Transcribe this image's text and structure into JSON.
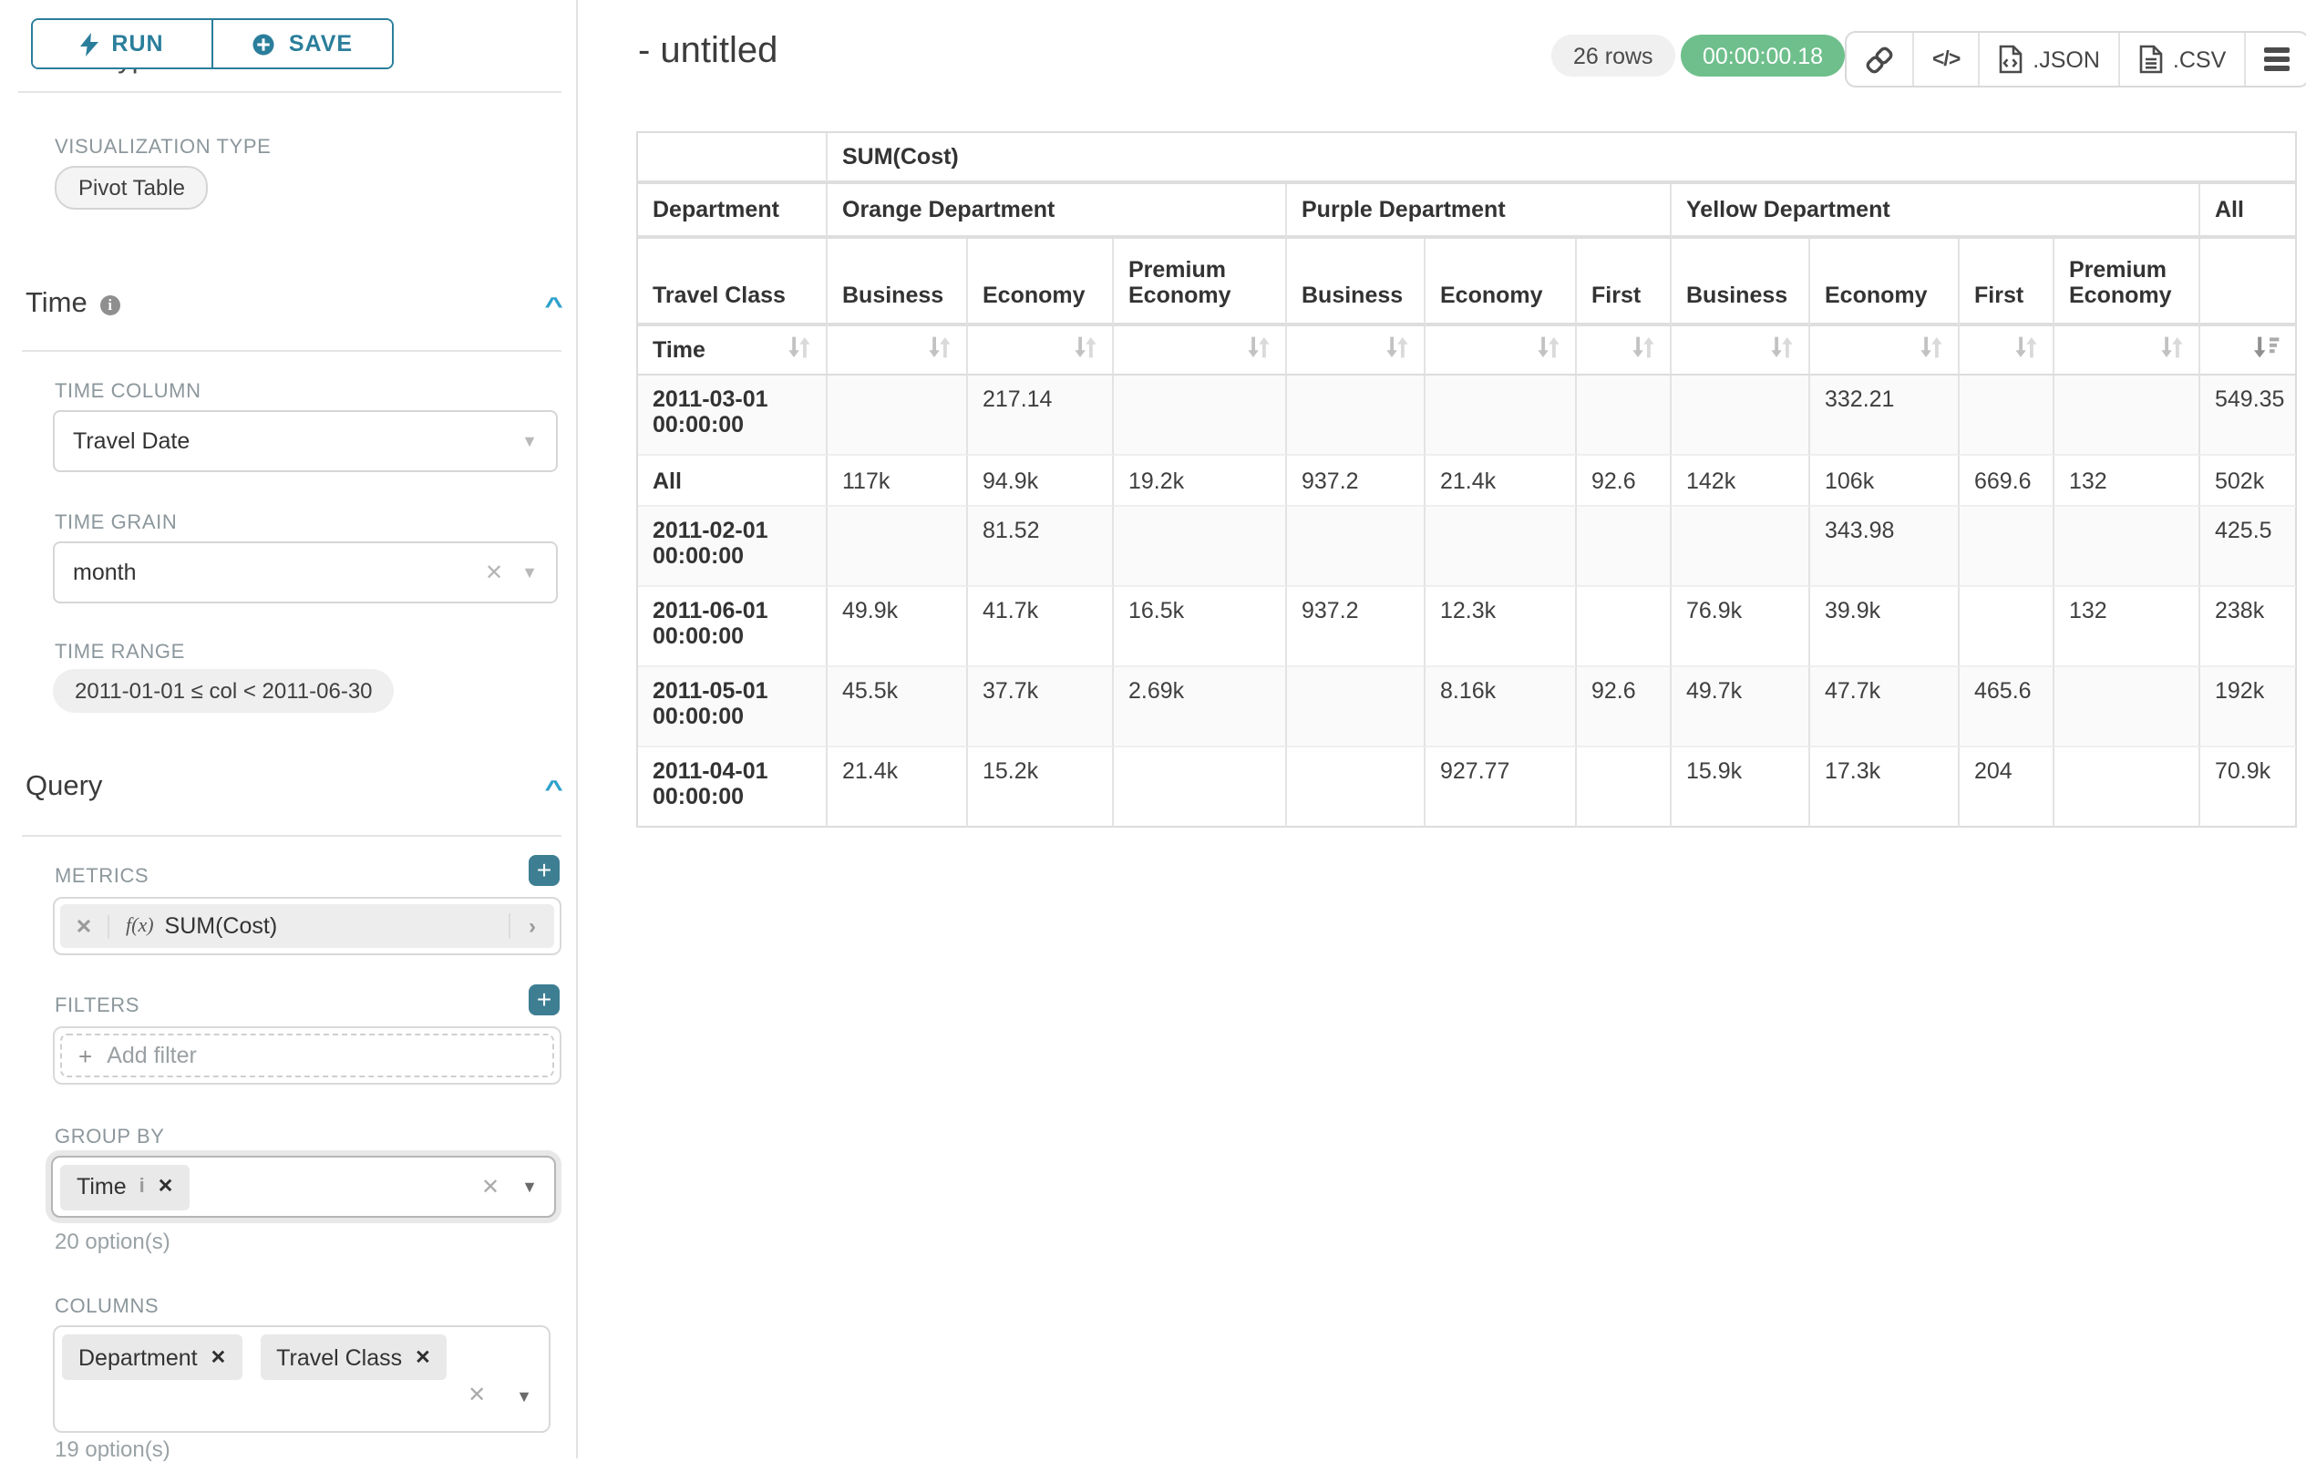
{
  "sidebar": {
    "chart_type_heading": "Chart Type",
    "run_label": "RUN",
    "save_label": "SAVE",
    "visualization": {
      "label": "VISUALIZATION TYPE",
      "value": "Pivot Table"
    },
    "time": {
      "title": "Time",
      "column": {
        "label": "TIME COLUMN",
        "value": "Travel Date"
      },
      "grain": {
        "label": "TIME GRAIN",
        "value": "month"
      },
      "range": {
        "label": "TIME RANGE",
        "value": "2011-01-01 ≤ col < 2011-06-30"
      }
    },
    "query": {
      "title": "Query",
      "metrics": {
        "label": "METRICS",
        "fx": "f(x)",
        "value": "SUM(Cost)"
      },
      "filters": {
        "label": "FILTERS",
        "placeholder": "Add filter"
      },
      "group_by": {
        "label": "GROUP BY",
        "tag": "Time",
        "hint": "20 option(s)"
      },
      "columns": {
        "label": "COLUMNS",
        "tag1": "Department",
        "tag2": "Travel Class",
        "hint": "19 option(s)"
      }
    }
  },
  "header": {
    "title": "- untitled",
    "row_count": "26 rows",
    "timer": "00:00:00.18",
    "export_json_label": ".JSON",
    "export_csv_label": ".CSV"
  },
  "chart_data": {
    "type": "pivot-table",
    "metric_label": "SUM(Cost)",
    "row_header_label": "Department",
    "class_header_label": "Travel Class",
    "row_dimension": "Time",
    "column_groups": [
      {
        "name": "Orange Department",
        "classes": [
          "Business",
          "Economy",
          "Premium Economy"
        ]
      },
      {
        "name": "Purple Department",
        "classes": [
          "Business",
          "Economy",
          "First"
        ]
      },
      {
        "name": "Yellow Department",
        "classes": [
          "Business",
          "Economy",
          "First",
          "Premium Economy"
        ]
      },
      {
        "name": "All",
        "classes": [
          ""
        ]
      }
    ],
    "rows": [
      {
        "label": "2011-03-01 00:00:00",
        "values": [
          "",
          "217.14",
          "",
          "",
          "",
          "",
          "",
          "332.21",
          "",
          "",
          "549.35"
        ]
      },
      {
        "label": "All",
        "values": [
          "117k",
          "94.9k",
          "19.2k",
          "937.2",
          "21.4k",
          "92.6",
          "142k",
          "106k",
          "669.6",
          "132",
          "502k"
        ]
      },
      {
        "label": "2011-02-01 00:00:00",
        "values": [
          "",
          "81.52",
          "",
          "",
          "",
          "",
          "",
          "343.98",
          "",
          "",
          "425.5"
        ]
      },
      {
        "label": "2011-06-01 00:00:00",
        "values": [
          "49.9k",
          "41.7k",
          "16.5k",
          "937.2",
          "12.3k",
          "",
          "76.9k",
          "39.9k",
          "",
          "132",
          "238k"
        ]
      },
      {
        "label": "2011-05-01 00:00:00",
        "values": [
          "45.5k",
          "37.7k",
          "2.69k",
          "",
          "8.16k",
          "92.6",
          "49.7k",
          "47.7k",
          "465.6",
          "",
          "192k"
        ]
      },
      {
        "label": "2011-04-01 00:00:00",
        "values": [
          "21.4k",
          "15.2k",
          "",
          "",
          "927.77",
          "",
          "15.9k",
          "17.3k",
          "204",
          "",
          "70.9k"
        ]
      }
    ],
    "sort_state": "last column sorted descending"
  }
}
